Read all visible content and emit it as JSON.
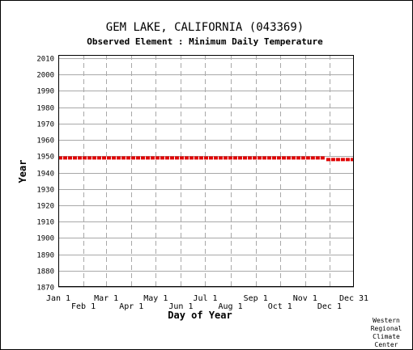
{
  "chart_data": {
    "type": "scatter",
    "title": "GEM LAKE, CALIFORNIA   (043369)",
    "subtitle": "Observed Element : Minimum Daily Temperature",
    "xlabel": "Day of Year",
    "ylabel": "Year",
    "credit": [
      "Western",
      "Regional",
      "Climate",
      "Center"
    ],
    "ylim": [
      1870,
      2012
    ],
    "xlim": [
      1,
      365
    ],
    "y_ticks": [
      2010,
      2000,
      1990,
      1980,
      1970,
      1960,
      1950,
      1940,
      1930,
      1920,
      1910,
      1900,
      1890,
      1880,
      1870
    ],
    "x_ticks_upper": [
      {
        "label": "Jan 1",
        "day": 1
      },
      {
        "label": "Mar 1",
        "day": 60
      },
      {
        "label": "May 1",
        "day": 121
      },
      {
        "label": "Jul 1",
        "day": 182
      },
      {
        "label": "Sep 1",
        "day": 244
      },
      {
        "label": "Nov 1",
        "day": 305
      },
      {
        "label": "Dec 31",
        "day": 365
      }
    ],
    "x_ticks_lower": [
      {
        "label": "Feb 1",
        "day": 32
      },
      {
        "label": "Apr 1",
        "day": 91
      },
      {
        "label": "Jun 1",
        "day": 152
      },
      {
        "label": "Aug 1",
        "day": 213
      },
      {
        "label": "Oct 1",
        "day": 274
      },
      {
        "label": "Dec 1",
        "day": 335
      }
    ],
    "grid": true,
    "series": [
      {
        "color": "#e00000",
        "segments": [
          {
            "year": 1949,
            "day_start": 1,
            "day_end": 305
          },
          {
            "year": 1949,
            "day_start": 306,
            "day_end": 330
          },
          {
            "year": 1948,
            "day_start": 331,
            "day_end": 365
          }
        ]
      }
    ]
  }
}
